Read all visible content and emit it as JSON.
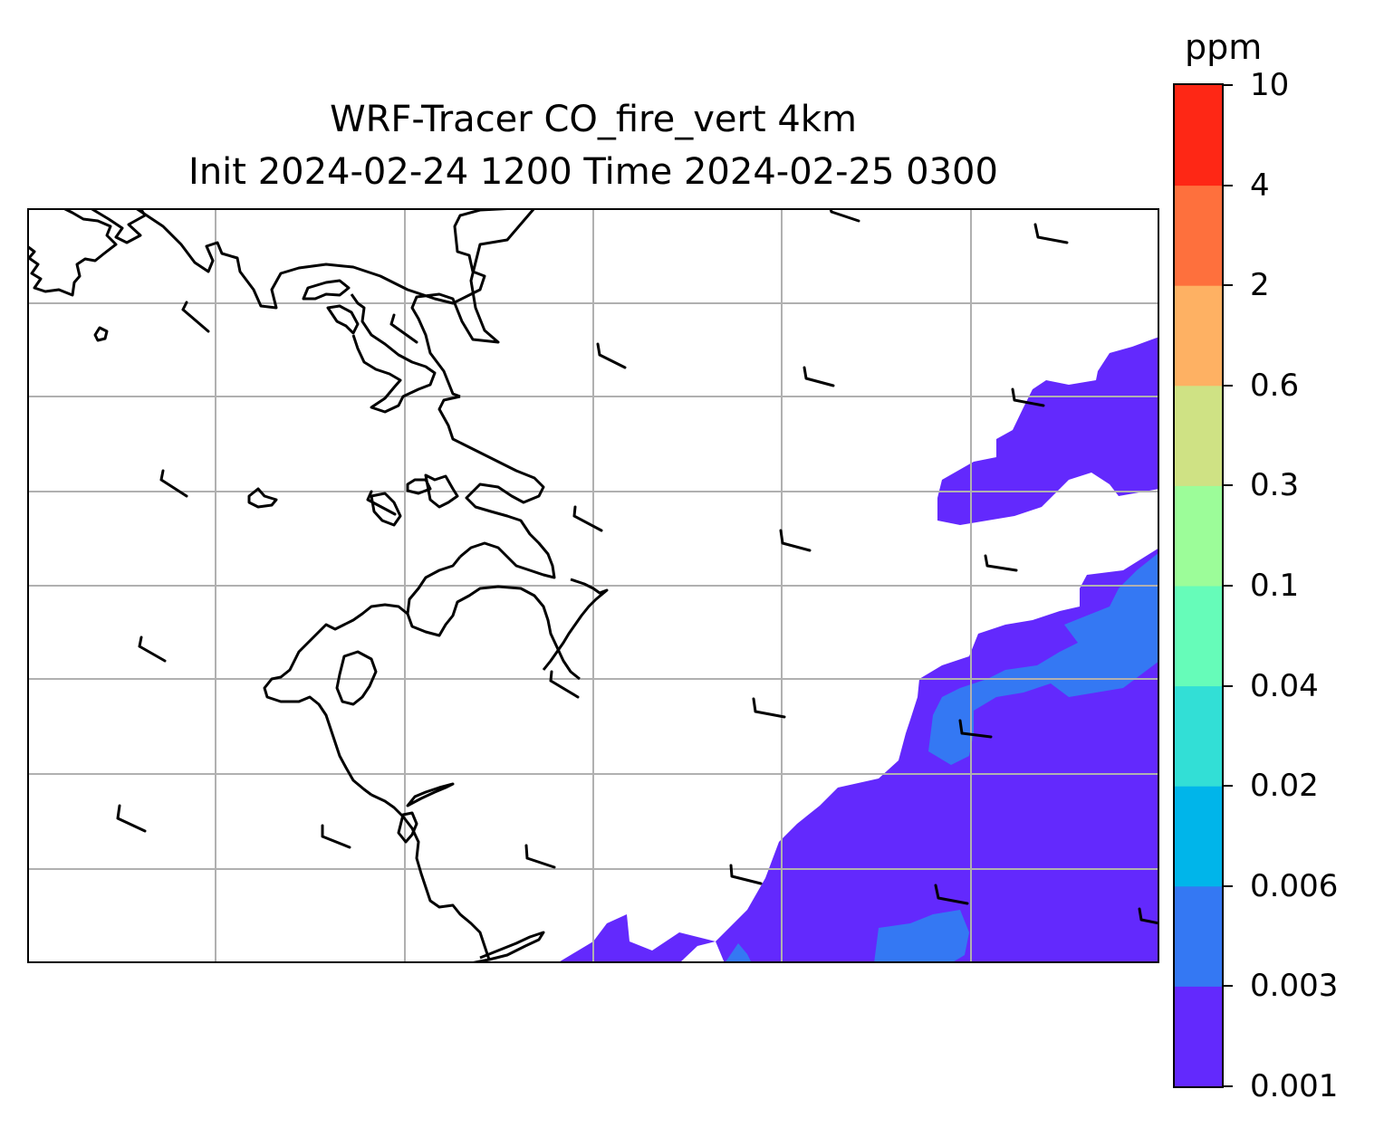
{
  "header": {
    "title_line1": "WRF-Tracer CO_fire_vert 4km",
    "title_line2": "Init 2024-02-24 1200 Time 2024-02-25 0300"
  },
  "colorbar": {
    "unit": "ppm",
    "levels": [
      "0.001",
      "0.003",
      "0.006",
      "0.02",
      "0.04",
      "0.1",
      "0.3",
      "0.6",
      "2",
      "4",
      "10"
    ],
    "colors": [
      "#6329fd",
      "#3478f3",
      "#00b5ea",
      "#32dfd6",
      "#66fcb9",
      "#9cfd99",
      "#cfe284",
      "#feb163",
      "#fe703d",
      "#fe2715"
    ]
  },
  "map": {
    "grid_color": "#b0b0b0",
    "coastline_color": "#000000",
    "has_wind_barbs": true,
    "has_gridlines": true
  }
}
